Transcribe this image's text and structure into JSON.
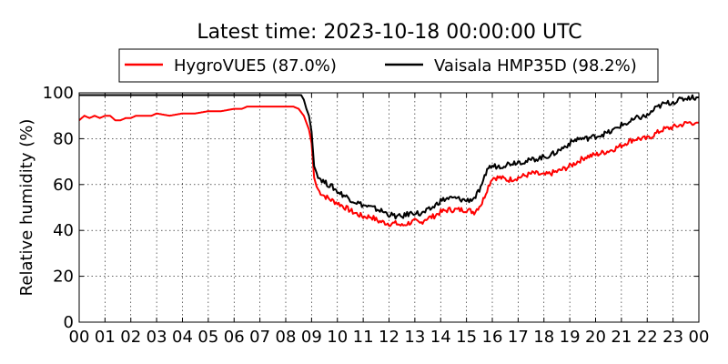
{
  "chart_data": {
    "type": "line",
    "title": "Latest time: 2023-10-18 00:00:00 UTC",
    "xlabel": "",
    "ylabel": "Relative humidity (%)",
    "xlim": [
      0,
      24
    ],
    "ylim": [
      0,
      100
    ],
    "grid": true,
    "legend_placement": "top-center",
    "x_tick_labels": [
      "00",
      "01",
      "02",
      "03",
      "04",
      "05",
      "06",
      "07",
      "08",
      "09",
      "10",
      "11",
      "12",
      "13",
      "14",
      "15",
      "16",
      "17",
      "18",
      "19",
      "20",
      "21",
      "22",
      "23",
      "00"
    ],
    "y_tick_labels": [
      "0",
      "20",
      "40",
      "60",
      "80",
      "100"
    ],
    "y_ticks": [
      0,
      20,
      40,
      60,
      80,
      100
    ],
    "x_units": "hour of day (UTC)",
    "series": [
      {
        "name": "HygroVUE5 (87.0%)",
        "color": "#ff0000",
        "x": [
          0,
          0.2,
          0.4,
          0.6,
          0.8,
          1.0,
          1.2,
          1.4,
          1.6,
          1.8,
          2.0,
          2.2,
          2.5,
          2.8,
          3.0,
          3.5,
          4.0,
          4.5,
          5.0,
          5.5,
          6.0,
          6.3,
          6.5,
          7.0,
          7.5,
          8.0,
          8.3,
          8.5,
          8.7,
          8.9,
          9.0,
          9.1,
          9.2,
          9.3,
          9.5,
          9.8,
          10.0,
          10.3,
          10.6,
          11.0,
          11.3,
          11.6,
          12.0,
          12.3,
          12.5,
          12.7,
          13.0,
          13.2,
          13.4,
          13.7,
          14.0,
          14.3,
          14.6,
          15.0,
          15.3,
          15.6,
          15.8,
          16.0,
          16.3,
          16.6,
          17.0,
          17.3,
          17.6,
          18.0,
          18.3,
          18.6,
          19.0,
          19.3,
          19.6,
          20.0,
          20.3,
          20.6,
          21.0,
          21.3,
          21.6,
          22.0,
          22.3,
          22.6,
          23.0,
          23.3,
          23.6,
          24.0
        ],
        "values": [
          88,
          90,
          89,
          90,
          89,
          90,
          90,
          88,
          88,
          89,
          89,
          90,
          90,
          90,
          91,
          90,
          91,
          91,
          92,
          92,
          93,
          93,
          94,
          94,
          94,
          94,
          94,
          93,
          90,
          84,
          78,
          63,
          59,
          57,
          55,
          53,
          52,
          50,
          48,
          46,
          46,
          44,
          43,
          43,
          42,
          43,
          44,
          43,
          45,
          46,
          48,
          49,
          49,
          49,
          48,
          52,
          58,
          63,
          63,
          62,
          63,
          64,
          65,
          64,
          65,
          66,
          68,
          70,
          72,
          73,
          74,
          75,
          77,
          79,
          80,
          80,
          82,
          84,
          85,
          86,
          87,
          87
        ]
      },
      {
        "name": "Vaisala HMP35D (98.2%)",
        "color": "#000000",
        "x": [
          0,
          0.1,
          8.6,
          8.7,
          8.8,
          8.9,
          9.0,
          9.1,
          9.2,
          9.3,
          9.5,
          9.8,
          10.0,
          10.3,
          10.6,
          11.0,
          11.3,
          11.6,
          12.0,
          12.3,
          12.5,
          12.7,
          13.0,
          13.2,
          13.4,
          13.7,
          14.0,
          14.3,
          14.6,
          15.0,
          15.3,
          15.6,
          15.8,
          16.0,
          16.3,
          16.6,
          17.0,
          17.3,
          17.6,
          18.0,
          18.3,
          18.6,
          19.0,
          19.3,
          19.6,
          20.0,
          20.3,
          20.6,
          21.0,
          21.3,
          21.6,
          22.0,
          22.3,
          22.6,
          23.0,
          23.3,
          23.6,
          24.0
        ],
        "values": [
          99,
          99,
          99,
          97,
          93,
          90,
          83,
          68,
          65,
          63,
          61,
          59,
          57,
          55,
          53,
          51,
          50,
          49,
          47,
          46,
          46,
          47,
          48,
          47,
          48,
          50,
          53,
          54,
          54,
          53,
          54,
          59,
          67,
          68,
          68,
          69,
          70,
          70,
          71,
          72,
          73,
          75,
          78,
          80,
          80,
          81,
          82,
          83,
          86,
          87,
          89,
          90,
          93,
          95,
          96,
          97,
          98,
          98
        ]
      }
    ]
  }
}
